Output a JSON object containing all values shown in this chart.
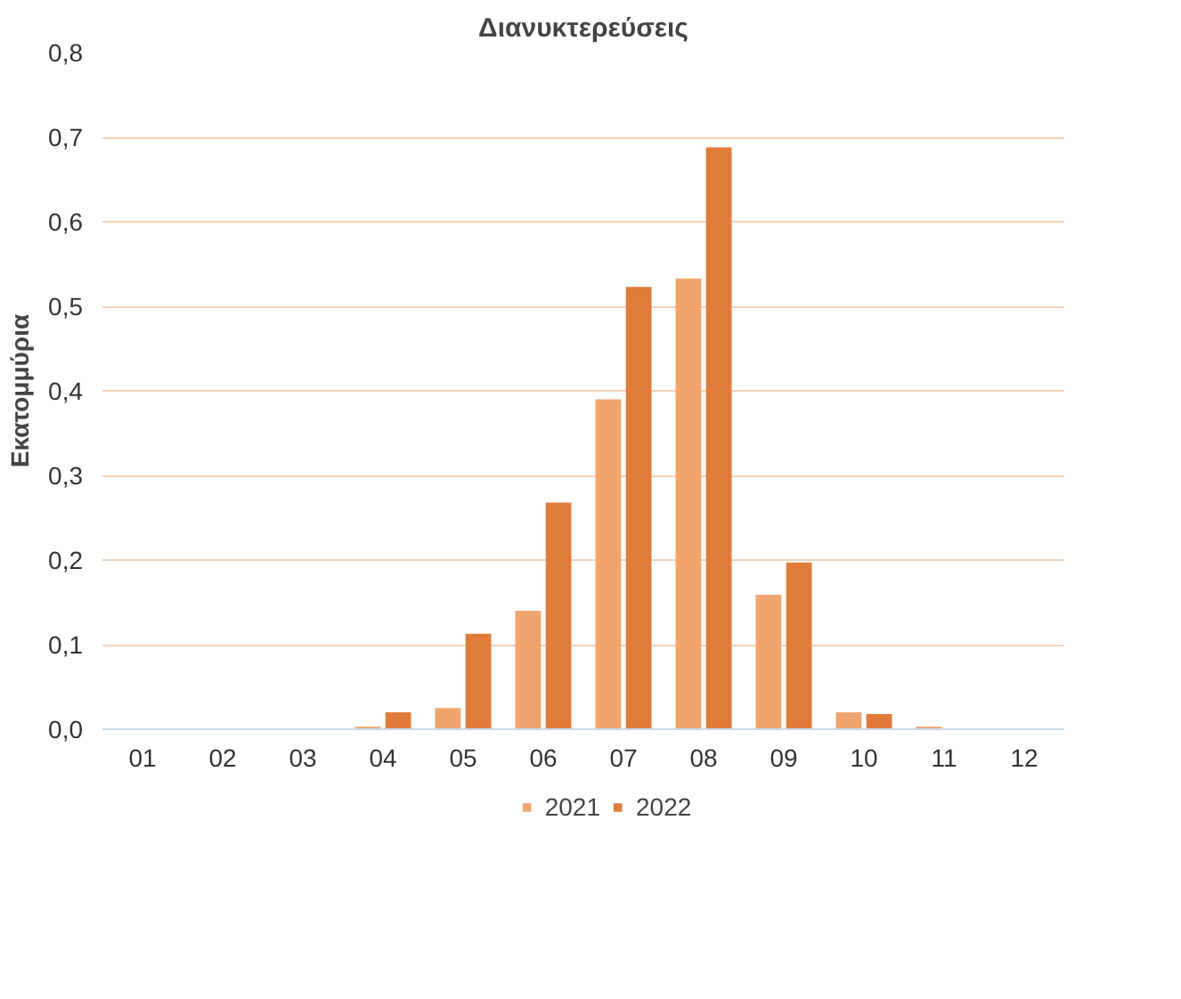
{
  "chart_data": {
    "type": "bar",
    "title": "Διανυκτερεύσεις",
    "ylabel": "Εκατομμύρια",
    "categories": [
      "01",
      "02",
      "03",
      "04",
      "05",
      "06",
      "07",
      "08",
      "09",
      "10",
      "11",
      "12"
    ],
    "series": [
      {
        "name": "2021",
        "color": "#f0a570",
        "values": [
          0,
          0,
          0,
          0.003,
          0.025,
          0.14,
          0.39,
          0.533,
          0.159,
          0.02,
          0.003,
          0
        ]
      },
      {
        "name": "2022",
        "color": "#e07b39",
        "values": [
          0,
          0,
          0,
          0.02,
          0.113,
          0.268,
          0.523,
          0.688,
          0.197,
          0.018,
          0,
          0
        ]
      }
    ],
    "ylim": [
      0,
      0.8
    ],
    "yticks": [
      {
        "value": 0,
        "label": "0,0"
      },
      {
        "value": 0.1,
        "label": "0,1"
      },
      {
        "value": 0.2,
        "label": "0,2"
      },
      {
        "value": 0.3,
        "label": "0,3"
      },
      {
        "value": 0.4,
        "label": "0,4"
      },
      {
        "value": 0.5,
        "label": "0,5"
      },
      {
        "value": 0.6,
        "label": "0,6"
      },
      {
        "value": 0.7,
        "label": "0,7"
      },
      {
        "value": 0.8,
        "label": "0,8"
      }
    ],
    "grid": "y",
    "legend": "bottom"
  }
}
